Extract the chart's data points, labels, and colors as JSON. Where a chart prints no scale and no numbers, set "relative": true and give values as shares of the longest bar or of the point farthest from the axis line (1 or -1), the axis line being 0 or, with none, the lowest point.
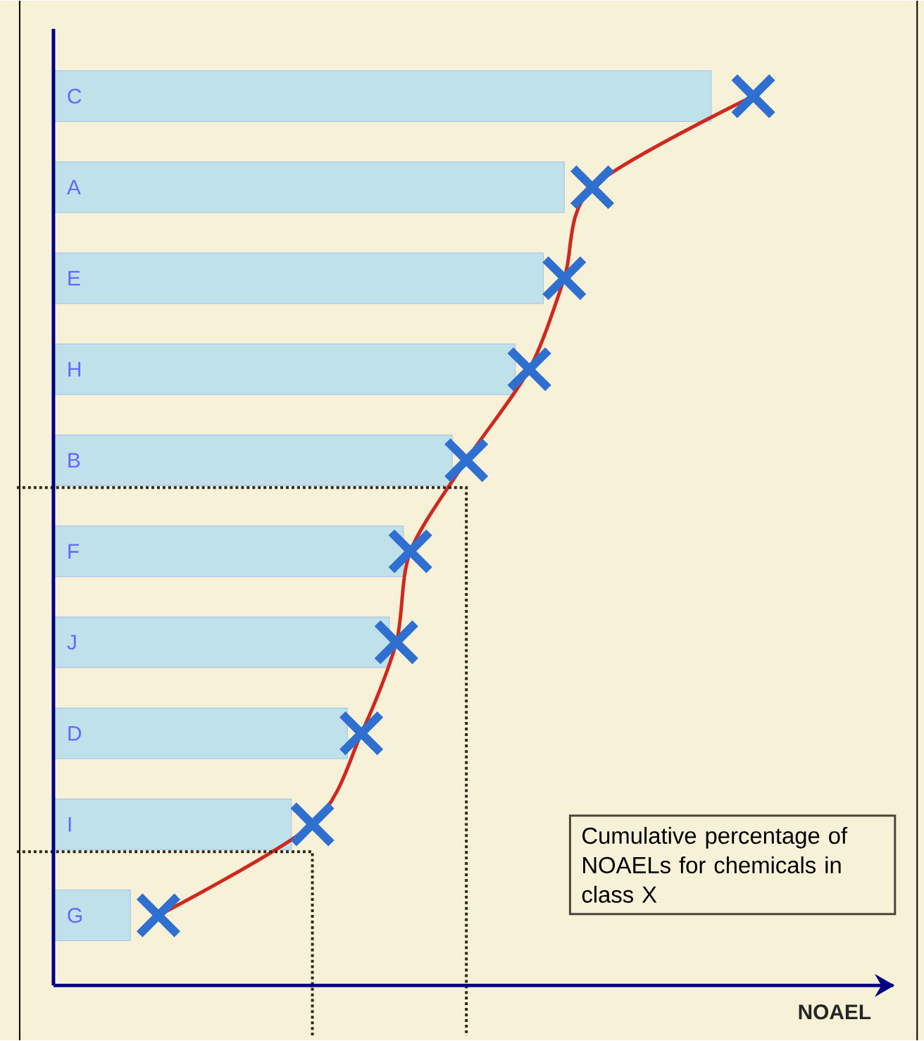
{
  "chart_data": {
    "type": "bar",
    "orientation": "horizontal",
    "relative": true,
    "xlabel": "NOAEL",
    "categories": [
      "C",
      "A",
      "E",
      "H",
      "B",
      "F",
      "J",
      "D",
      "I",
      "G"
    ],
    "series": [
      {
        "color": "#bfe1ea",
        "values": [
          0.94,
          0.73,
          0.7,
          0.66,
          0.57,
          0.5,
          0.48,
          0.42,
          0.34,
          0.11
        ]
      },
      {
        "type": "line",
        "color": "#d0281e",
        "colors": [
          "#2f6fd0",
          "#2f6fd0",
          "#2f6fd0",
          "#2f6fd0",
          "#2f6fd0",
          "#2f6fd0",
          "#2f6fd0",
          "#2f6fd0",
          "#2f6fd0",
          "#2f6fd0"
        ],
        "line_style": "solid",
        "marker": "cross",
        "values": [
          1,
          0.77,
          0.73,
          0.68,
          0.59,
          0.51,
          0.49,
          0.44,
          0.37,
          0.15
        ]
      }
    ],
    "ref_lines": [
      {
        "axis": "x",
        "value": 0.37,
        "line_style": "dotted",
        "color": "#2a2a18"
      },
      {
        "axis": "x",
        "value": 0.59,
        "line_style": "dotted",
        "color": "#2a2a18"
      }
    ],
    "annotations": [
      "Cumulative percentage of NOAELs for chemicals in class X"
    ],
    "tick_labels": "y"
  }
}
